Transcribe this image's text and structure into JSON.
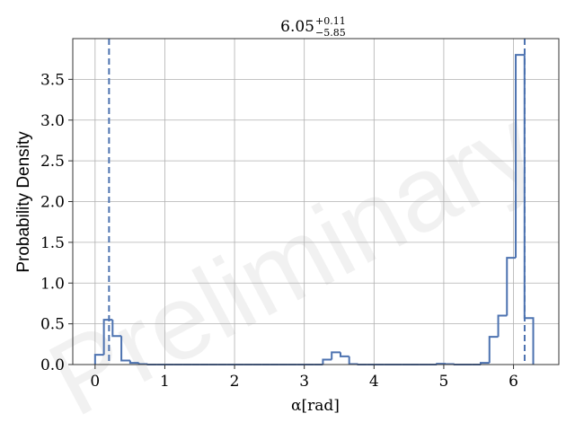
{
  "chart_data": {
    "type": "histogram",
    "title": {
      "value": "6.05",
      "upper": "+0.11",
      "lower": "−5.85"
    },
    "xlabel": "α[rad]",
    "ylabel": "Probability Density",
    "watermark": "Preliminary",
    "xlim": [
      -0.32,
      6.65
    ],
    "ylim": [
      0.0,
      4.0
    ],
    "xticks": [
      0,
      1,
      2,
      3,
      4,
      5,
      6
    ],
    "xtick_labels": [
      "0",
      "1",
      "2",
      "3",
      "4",
      "5",
      "6"
    ],
    "yticks": [
      0.0,
      0.5,
      1.0,
      1.5,
      2.0,
      2.5,
      3.0,
      3.5
    ],
    "ytick_labels": [
      "0.0",
      "0.5",
      "1.0",
      "1.5",
      "2.0",
      "2.5",
      "3.0",
      "3.5"
    ],
    "grid": true,
    "bin_edges": [
      0.0,
      0.126,
      0.251,
      0.377,
      0.503,
      0.628,
      0.754,
      0.88,
      1.005,
      1.131,
      1.257,
      1.382,
      1.508,
      1.634,
      1.759,
      1.885,
      2.011,
      2.136,
      2.262,
      2.388,
      2.513,
      2.639,
      2.765,
      2.89,
      3.016,
      3.142,
      3.267,
      3.393,
      3.519,
      3.644,
      3.77,
      3.896,
      4.021,
      4.147,
      4.273,
      4.398,
      4.524,
      4.65,
      4.775,
      4.901,
      5.027,
      5.152,
      5.278,
      5.404,
      5.529,
      5.655,
      5.781,
      5.906,
      6.032,
      6.158,
      6.283
    ],
    "densities": [
      0.12,
      0.55,
      0.35,
      0.05,
      0.02,
      0.005,
      0.0,
      0.0,
      0.0,
      0.0,
      0.0,
      0.0,
      0.0,
      0.0,
      0.0,
      0.0,
      0.0,
      0.0,
      0.0,
      0.0,
      0.0,
      0.0,
      0.0,
      0.0,
      0.0,
      0.0,
      0.06,
      0.15,
      0.1,
      0.005,
      0.0,
      0.0,
      0.0,
      0.0,
      0.0,
      0.0,
      0.0,
      0.0,
      0.0,
      0.01,
      0.005,
      0.0,
      0.0,
      0.0,
      0.02,
      0.34,
      0.6,
      1.31,
      3.8,
      0.57
    ],
    "quantile_lines": [
      0.2,
      6.16
    ],
    "color": "#4c72b0"
  }
}
